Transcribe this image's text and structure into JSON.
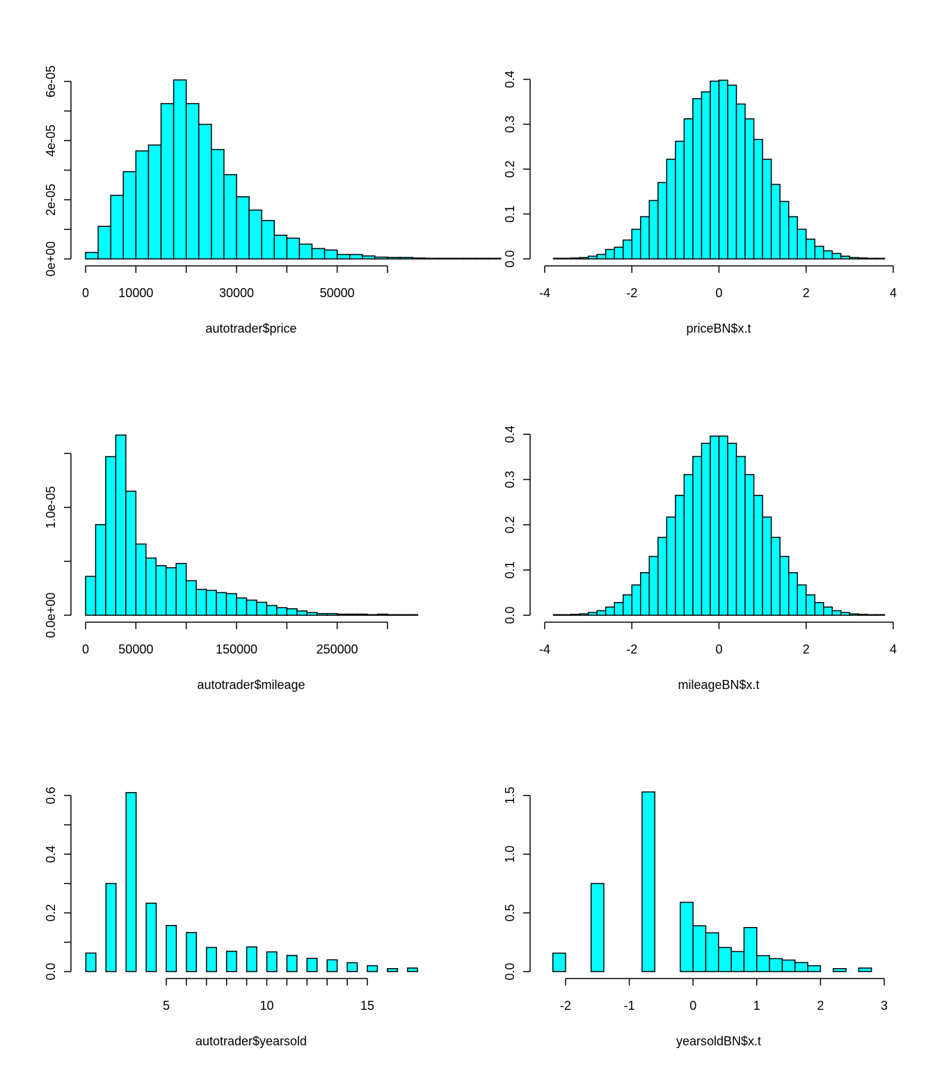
{
  "colors": {
    "bar_fill": "#00FFFF",
    "bar_stroke": "#000000",
    "background": "#FFFFFF"
  },
  "chart_data": [
    {
      "type": "bar",
      "xlabel": "autotrader$price",
      "ylabel": "",
      "bin_width": 2500,
      "x_start": 0,
      "xlim": [
        0,
        66000
      ],
      "ylim": [
        0,
        6.05e-05
      ],
      "x_ticks": [
        0,
        10000,
        30000,
        50000
      ],
      "x_tick_marks": [
        0,
        10000,
        20000,
        30000,
        40000,
        50000,
        60000
      ],
      "x_tick_labels": [
        "0",
        "10000",
        "30000",
        "50000"
      ],
      "y_ticks": [
        0,
        2e-05,
        4e-05,
        6e-05
      ],
      "y_tick_marks": [
        0,
        1e-05,
        2e-05,
        3e-05,
        4e-05,
        5e-05,
        6e-05
      ],
      "y_tick_labels": [
        "0e+00",
        "2e-05",
        "4e-05",
        "6e-05"
      ],
      "values": [
        2.2e-06,
        1.1e-05,
        2.15e-05,
        2.95e-05,
        3.65e-05,
        3.85e-05,
        5.25e-05,
        6.05e-05,
        5.25e-05,
        4.55e-05,
        3.7e-05,
        2.85e-05,
        2.1e-05,
        1.65e-05,
        1.3e-05,
        8e-06,
        7e-06,
        5e-06,
        3.5e-06,
        3e-06,
        1.5e-06,
        1.5e-06,
        1e-06,
        6e-07,
        5e-07,
        5e-07,
        3e-07,
        2e-07,
        2e-07,
        2e-07,
        2e-07,
        2e-07,
        2e-07
      ]
    },
    {
      "type": "bar",
      "xlabel": "priceBN$x.t",
      "ylabel": "",
      "bin_width": 0.2,
      "x_start": -3.8,
      "xlim": [
        -4,
        4
      ],
      "ylim": [
        0,
        0.4
      ],
      "x_ticks": [
        -4,
        -2,
        0,
        2,
        4
      ],
      "x_tick_labels": [
        "-4",
        "-2",
        "0",
        "2",
        "4"
      ],
      "y_ticks": [
        0,
        0.1,
        0.2,
        0.3,
        0.4
      ],
      "y_tick_labels": [
        "0.0",
        "0.1",
        "0.2",
        "0.3",
        "0.4"
      ],
      "values": [
        0.0005,
        0.001,
        0.002,
        0.003,
        0.006,
        0.01,
        0.021,
        0.026,
        0.042,
        0.066,
        0.094,
        0.13,
        0.17,
        0.222,
        0.262,
        0.312,
        0.357,
        0.372,
        0.396,
        0.398,
        0.387,
        0.345,
        0.312,
        0.266,
        0.222,
        0.166,
        0.128,
        0.094,
        0.066,
        0.044,
        0.028,
        0.018,
        0.012,
        0.006,
        0.003,
        0.002,
        0.001,
        0.0005
      ]
    },
    {
      "type": "bar",
      "xlabel": "autotrader$mileage",
      "ylabel": "",
      "bin_width": 10000,
      "x_start": 0,
      "xlim": [
        0,
        330000
      ],
      "ylim": [
        0,
        1.67e-05
      ],
      "x_ticks": [
        0,
        50000,
        150000,
        250000
      ],
      "x_tick_marks": [
        0,
        50000,
        100000,
        150000,
        200000,
        250000,
        300000
      ],
      "x_tick_labels": [
        "0",
        "50000",
        "150000",
        "250000"
      ],
      "y_ticks": [
        0,
        1e-05
      ],
      "y_tick_marks": [
        0,
        5e-06,
        1e-05,
        1.5e-05
      ],
      "y_tick_labels": [
        "0.0e+00",
        "1.0e-05"
      ],
      "values": [
        3.6e-06,
        8.4e-06,
        1.47e-05,
        1.67e-05,
        1.15e-05,
        6.6e-06,
        5.3e-06,
        4.6e-06,
        4.4e-06,
        4.8e-06,
        3.2e-06,
        2.4e-06,
        2.3e-06,
        2.1e-06,
        2e-06,
        1.6e-06,
        1.4e-06,
        1.2e-06,
        9e-07,
        7e-07,
        6e-07,
        4e-07,
        2.5e-07,
        1.5e-07,
        1.5e-07,
        1e-07,
        1e-07,
        1e-07,
        5e-08,
        1e-07,
        5e-08,
        5e-08,
        5e-08
      ]
    },
    {
      "type": "bar",
      "xlabel": "mileageBN$x.t",
      "ylabel": "",
      "bin_width": 0.2,
      "x_start": -3.8,
      "xlim": [
        -4,
        4
      ],
      "ylim": [
        0,
        0.4
      ],
      "x_ticks": [
        -4,
        -2,
        0,
        2,
        4
      ],
      "x_tick_labels": [
        "-4",
        "-2",
        "0",
        "2",
        "4"
      ],
      "y_ticks": [
        0,
        0.1,
        0.2,
        0.3,
        0.4
      ],
      "y_tick_labels": [
        "0.0",
        "0.1",
        "0.2",
        "0.3",
        "0.4"
      ],
      "values": [
        0.0005,
        0.001,
        0.002,
        0.003,
        0.006,
        0.01,
        0.018,
        0.028,
        0.045,
        0.067,
        0.094,
        0.13,
        0.172,
        0.217,
        0.265,
        0.311,
        0.351,
        0.38,
        0.396,
        0.396,
        0.38,
        0.351,
        0.311,
        0.265,
        0.217,
        0.172,
        0.13,
        0.094,
        0.067,
        0.045,
        0.028,
        0.018,
        0.01,
        0.006,
        0.003,
        0.002,
        0.001,
        0.0005
      ]
    },
    {
      "type": "bar",
      "xlabel": "autotrader$yearsold",
      "ylabel": "",
      "bin_width": 0.5,
      "bar_centers": [
        1.25,
        2.25,
        3.25,
        4.25,
        5.25,
        6.25,
        7.25,
        8.25,
        9.25,
        10.25,
        11.25,
        12.25,
        13.25,
        14.25,
        15.25,
        16.25,
        17.25
      ],
      "xlim": [
        1,
        17.5
      ],
      "ylim": [
        0,
        0.61
      ],
      "x_ticks": [
        5,
        10,
        15
      ],
      "x_tick_marks": [
        5,
        6,
        7,
        8,
        9,
        10,
        11,
        12,
        13,
        14,
        15
      ],
      "x_axis_extent": [
        5,
        15
      ],
      "x_tick_labels": [
        "5",
        "10",
        "15"
      ],
      "y_ticks": [
        0,
        0.2,
        0.4,
        0.6
      ],
      "y_tick_marks": [
        0,
        0.1,
        0.2,
        0.3,
        0.4,
        0.5,
        0.6
      ],
      "y_tick_labels": [
        "0.0",
        "0.2",
        "0.4",
        "0.6"
      ],
      "values": [
        0.063,
        0.3,
        0.61,
        0.233,
        0.157,
        0.133,
        0.082,
        0.069,
        0.084,
        0.067,
        0.055,
        0.045,
        0.04,
        0.03,
        0.02,
        0.01,
        0.012
      ]
    },
    {
      "type": "bar",
      "xlabel": "yearsoldBN$x.t",
      "ylabel": "",
      "bin_width": 0.2,
      "x_start": -2.2,
      "xlim": [
        -2.2,
        3
      ],
      "ylim": [
        0,
        1.53
      ],
      "x_ticks": [
        -2,
        -1,
        0,
        1,
        2,
        3
      ],
      "x_tick_marks": [
        -2,
        -1,
        0,
        1,
        2,
        3
      ],
      "x_axis_extent": [
        -2,
        3
      ],
      "x_tick_labels": [
        "-2",
        "-1",
        "0",
        "1",
        "2",
        "3"
      ],
      "y_ticks": [
        0,
        0.5,
        1,
        1.5
      ],
      "y_tick_marks": [
        0,
        0.5,
        1,
        1.5
      ],
      "y_tick_labels": [
        "0.0",
        "0.5",
        "1.0",
        "1.5"
      ],
      "values": [
        0.157,
        0,
        0,
        0.75,
        0,
        0,
        0,
        1.53,
        0,
        0,
        0.59,
        0.39,
        0.33,
        0.205,
        0.17,
        0.375,
        0.135,
        0.11,
        0.098,
        0.077,
        0.05,
        0,
        0.025,
        0,
        0.03
      ]
    }
  ]
}
